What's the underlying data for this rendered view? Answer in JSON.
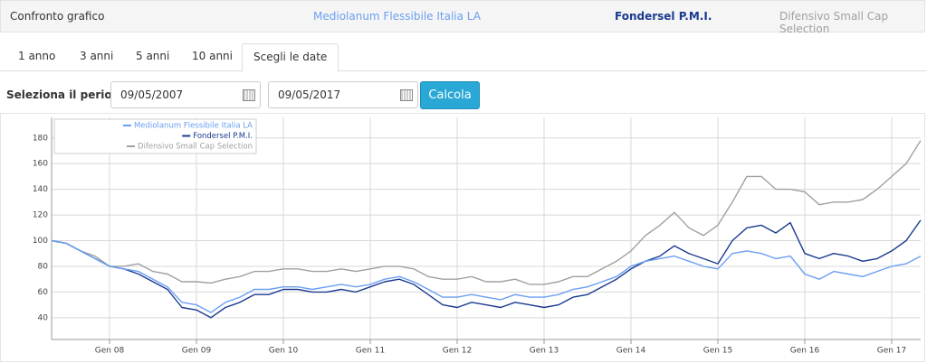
{
  "header": {
    "title": "Confronto grafico"
  },
  "tabs": [
    "1 anno",
    "3 anni",
    "5 anni",
    "10 anni",
    "Scegli le date"
  ],
  "form": {
    "label": "Seleziona il periodo:",
    "start": "09/05/2007",
    "end": "09/05/2017",
    "button": "Calcola"
  },
  "chart_data": {
    "type": "line",
    "x": [
      "2007-05",
      "2007-07",
      "2007-09",
      "2007-11",
      "2008-01",
      "2008-03",
      "2008-05",
      "2008-07",
      "2008-09",
      "2008-11",
      "2009-01",
      "2009-03",
      "2009-05",
      "2009-07",
      "2009-09",
      "2009-11",
      "2010-01",
      "2010-03",
      "2010-05",
      "2010-07",
      "2010-09",
      "2010-11",
      "2011-01",
      "2011-03",
      "2011-05",
      "2011-07",
      "2011-09",
      "2011-11",
      "2012-01",
      "2012-03",
      "2012-05",
      "2012-07",
      "2012-09",
      "2012-11",
      "2013-01",
      "2013-03",
      "2013-05",
      "2013-07",
      "2013-09",
      "2013-11",
      "2014-01",
      "2014-03",
      "2014-05",
      "2014-07",
      "2014-09",
      "2014-11",
      "2015-01",
      "2015-03",
      "2015-05",
      "2015-07",
      "2015-09",
      "2015-11",
      "2016-01",
      "2016-03",
      "2016-05",
      "2016-07",
      "2016-09",
      "2016-11",
      "2017-01",
      "2017-03",
      "2017-05"
    ],
    "series": [
      {
        "name": "Mediolanum Flessibile Italia LA",
        "color": "#6a9ff2",
        "values": [
          100,
          98,
          92,
          86,
          80,
          78,
          76,
          70,
          64,
          52,
          50,
          44,
          52,
          56,
          62,
          62,
          64,
          64,
          62,
          64,
          66,
          64,
          66,
          70,
          72,
          68,
          62,
          56,
          56,
          58,
          56,
          54,
          58,
          56,
          56,
          58,
          62,
          64,
          68,
          72,
          80,
          84,
          86,
          88,
          84,
          80,
          78,
          90,
          92,
          90,
          86,
          88,
          74,
          70,
          76,
          74,
          72,
          76,
          80,
          82,
          88
        ]
      },
      {
        "name": "Fondersel P.M.I.",
        "color": "#1a3a8f",
        "values": [
          100,
          98,
          92,
          86,
          80,
          78,
          74,
          68,
          62,
          48,
          46,
          40,
          48,
          52,
          58,
          58,
          62,
          62,
          60,
          60,
          62,
          60,
          64,
          68,
          70,
          66,
          58,
          50,
          48,
          52,
          50,
          48,
          52,
          50,
          48,
          50,
          56,
          58,
          64,
          70,
          78,
          84,
          88,
          96,
          90,
          86,
          82,
          100,
          110,
          112,
          106,
          114,
          90,
          86,
          90,
          88,
          84,
          86,
          92,
          100,
          116
        ]
      },
      {
        "name": "Difensivo Small Cap Selection",
        "color": "#a0a0a0",
        "values": [
          100,
          98,
          92,
          88,
          80,
          80,
          82,
          76,
          74,
          68,
          68,
          67,
          70,
          72,
          76,
          76,
          78,
          78,
          76,
          76,
          78,
          76,
          78,
          80,
          80,
          78,
          72,
          70,
          70,
          72,
          68,
          68,
          70,
          66,
          66,
          68,
          72,
          72,
          78,
          84,
          92,
          104,
          112,
          122,
          110,
          104,
          112,
          130,
          150,
          150,
          140,
          140,
          138,
          128,
          130,
          130,
          132,
          140,
          150,
          160,
          178
        ]
      }
    ],
    "xlim": [
      "2007-05",
      "2017-05"
    ],
    "xticks": [
      {
        "value": "2008-01",
        "label": "Gen 08"
      },
      {
        "value": "2009-01",
        "label": "Gen 09"
      },
      {
        "value": "2010-01",
        "label": "Gen 10"
      },
      {
        "value": "2011-01",
        "label": "Gen 11"
      },
      {
        "value": "2012-01",
        "label": "Gen 12"
      },
      {
        "value": "2013-01",
        "label": "Gen 13"
      },
      {
        "value": "2014-01",
        "label": "Gen 14"
      },
      {
        "value": "2015-01",
        "label": "Gen 15"
      },
      {
        "value": "2016-01",
        "label": "Gen 16"
      },
      {
        "value": "2017-01",
        "label": "Gen 17"
      }
    ],
    "ylim": [
      23,
      196
    ],
    "yticks": [
      40,
      60,
      80,
      100,
      120,
      140,
      160,
      180
    ],
    "grid": true,
    "legend": "top-left"
  }
}
